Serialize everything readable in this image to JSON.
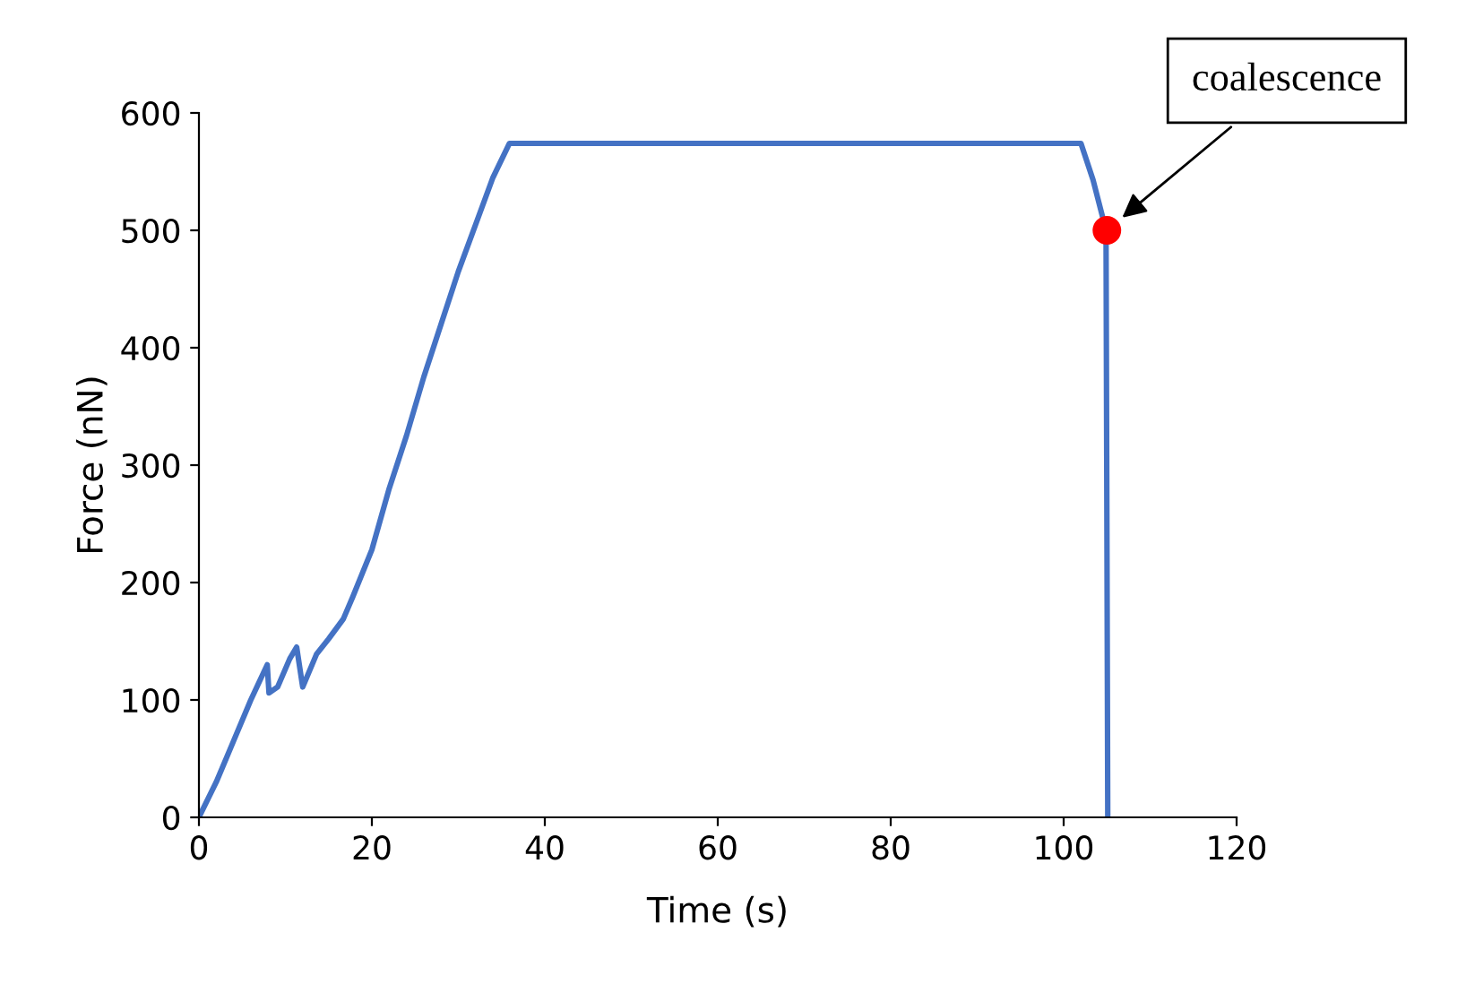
{
  "chart_data": {
    "type": "line",
    "xlabel": "Time (s)",
    "ylabel": "Force (nN)",
    "xlim": [
      0,
      120
    ],
    "ylim": [
      0,
      600
    ],
    "xticks": [
      0,
      20,
      40,
      60,
      80,
      100,
      120
    ],
    "yticks": [
      0,
      100,
      200,
      300,
      400,
      500,
      600
    ],
    "grid": false,
    "legend": false,
    "marker": "none",
    "line_style": "solid",
    "series": [
      {
        "color": "#4472c4",
        "x": [
          0,
          2,
          4,
          6,
          7.9,
          8.1,
          9.1,
          10.5,
          11.3,
          12.0,
          13.6,
          15,
          16.7,
          17.8,
          20,
          22,
          24,
          26,
          28,
          30,
          32,
          34,
          35.9,
          60,
          80,
          102.0,
          103.4,
          104.9,
          105.1
        ],
        "values": [
          0,
          30,
          65,
          100,
          130,
          106,
          111,
          135,
          145,
          111,
          139,
          152,
          169,
          188,
          228,
          280,
          325,
          375,
          420,
          465,
          505,
          545,
          574,
          574,
          574,
          574,
          543,
          500,
          0
        ]
      },
      {
        "type": "scatter",
        "color": "#ff0000",
        "marker": "circle",
        "x": [
          105
        ],
        "values": [
          500
        ]
      }
    ],
    "annotations": [
      "coalescence"
    ]
  }
}
